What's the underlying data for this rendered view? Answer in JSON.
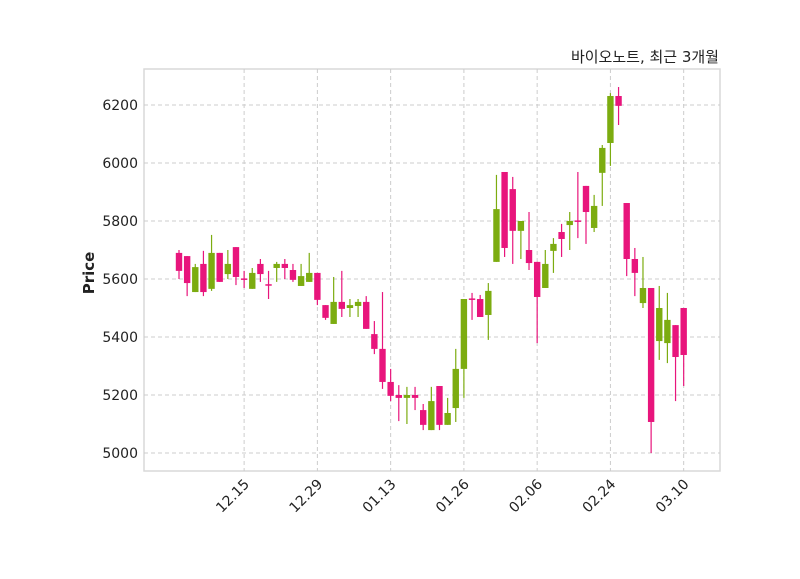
{
  "chart_data": {
    "type": "candlestick",
    "title": "바이오노트, 최근 3개월",
    "xlabel": "",
    "ylabel": "Price",
    "ylim": [
      4940,
      6330
    ],
    "yticks": [
      5000,
      5200,
      5400,
      5600,
      5800,
      6000,
      6200
    ],
    "xticks": [
      {
        "index": 8,
        "label": "12.15"
      },
      {
        "index": 17,
        "label": "12.29"
      },
      {
        "index": 26,
        "label": "01.13"
      },
      {
        "index": 35,
        "label": "01.26"
      },
      {
        "index": 44,
        "label": "02.06"
      },
      {
        "index": 53,
        "label": "02.24"
      },
      {
        "index": 62,
        "label": "03.10"
      }
    ],
    "grid": true,
    "colors": {
      "up": "#7cac10",
      "down": "#e8157c",
      "grid": "#cccccc",
      "axes": "#d9d9d9"
    },
    "ohlc": [
      [
        5690,
        5700,
        5600,
        5628
      ],
      [
        5679,
        5679,
        5541,
        5586
      ],
      [
        5555,
        5652,
        5555,
        5641
      ],
      [
        5652,
        5697,
        5541,
        5555
      ],
      [
        5566,
        5752,
        5559,
        5690
      ],
      [
        5690,
        5690,
        5590,
        5590
      ],
      [
        5617,
        5700,
        5600,
        5652
      ],
      [
        5710,
        5710,
        5579,
        5607
      ],
      [
        5602,
        5628,
        5569,
        5598
      ],
      [
        5566,
        5638,
        5566,
        5621
      ],
      [
        5652,
        5669,
        5590,
        5617
      ],
      [
        5582,
        5628,
        5531,
        5579
      ],
      [
        5638,
        5659,
        5590,
        5652
      ],
      [
        5652,
        5669,
        5600,
        5638
      ],
      [
        5631,
        5652,
        5590,
        5597
      ],
      [
        5576,
        5652,
        5576,
        5610
      ],
      [
        5590,
        5690,
        5590,
        5621
      ],
      [
        5621,
        5621,
        5510,
        5528
      ],
      [
        5510,
        5510,
        5459,
        5466
      ],
      [
        5445,
        5607,
        5445,
        5521
      ],
      [
        5521,
        5628,
        5469,
        5497
      ],
      [
        5500,
        5531,
        5469,
        5510
      ],
      [
        5507,
        5531,
        5469,
        5521
      ],
      [
        5521,
        5541,
        5428,
        5428
      ],
      [
        5410,
        5455,
        5341,
        5359
      ],
      [
        5359,
        5555,
        5221,
        5245
      ],
      [
        5245,
        5290,
        5179,
        5197
      ],
      [
        5200,
        5234,
        5110,
        5190
      ],
      [
        5190,
        5228,
        5100,
        5200
      ],
      [
        5200,
        5228,
        5148,
        5190
      ],
      [
        5148,
        5169,
        5079,
        5097
      ],
      [
        5079,
        5228,
        5079,
        5179
      ],
      [
        5231,
        5231,
        5079,
        5097
      ],
      [
        5097,
        5190,
        5097,
        5138
      ],
      [
        5155,
        5359,
        5107,
        5290
      ],
      [
        5290,
        5531,
        5190,
        5531
      ],
      [
        5533,
        5552,
        5459,
        5528
      ],
      [
        5531,
        5545,
        5469,
        5469
      ],
      [
        5476,
        5586,
        5390,
        5559
      ],
      [
        5659,
        5959,
        5659,
        5841
      ],
      [
        5969,
        5969,
        5676,
        5707
      ],
      [
        5910,
        5952,
        5652,
        5766
      ],
      [
        5766,
        5800,
        5669,
        5800
      ],
      [
        5700,
        5831,
        5631,
        5655
      ],
      [
        5659,
        5659,
        5379,
        5538
      ],
      [
        5569,
        5700,
        5569,
        5652
      ],
      [
        5697,
        5741,
        5621,
        5721
      ],
      [
        5762,
        5790,
        5676,
        5738
      ],
      [
        5786,
        5831,
        5700,
        5800
      ],
      [
        5802,
        5969,
        5741,
        5798
      ],
      [
        5921,
        5921,
        5721,
        5831
      ],
      [
        5776,
        5890,
        5762,
        5852
      ],
      [
        5966,
        6062,
        5852,
        6052
      ],
      [
        6069,
        6241,
        5990,
        6231
      ],
      [
        6231,
        6262,
        6131,
        6197
      ],
      [
        5862,
        5862,
        5610,
        5669
      ],
      [
        5669,
        5707,
        5541,
        5621
      ],
      [
        5517,
        5676,
        5500,
        5569
      ],
      [
        5569,
        5569,
        5000,
        5107
      ],
      [
        5386,
        5576,
        5321,
        5500
      ],
      [
        5379,
        5552,
        5310,
        5459
      ],
      [
        5441,
        5441,
        5179,
        5331
      ],
      [
        5500,
        5500,
        5231,
        5338
      ]
    ]
  }
}
